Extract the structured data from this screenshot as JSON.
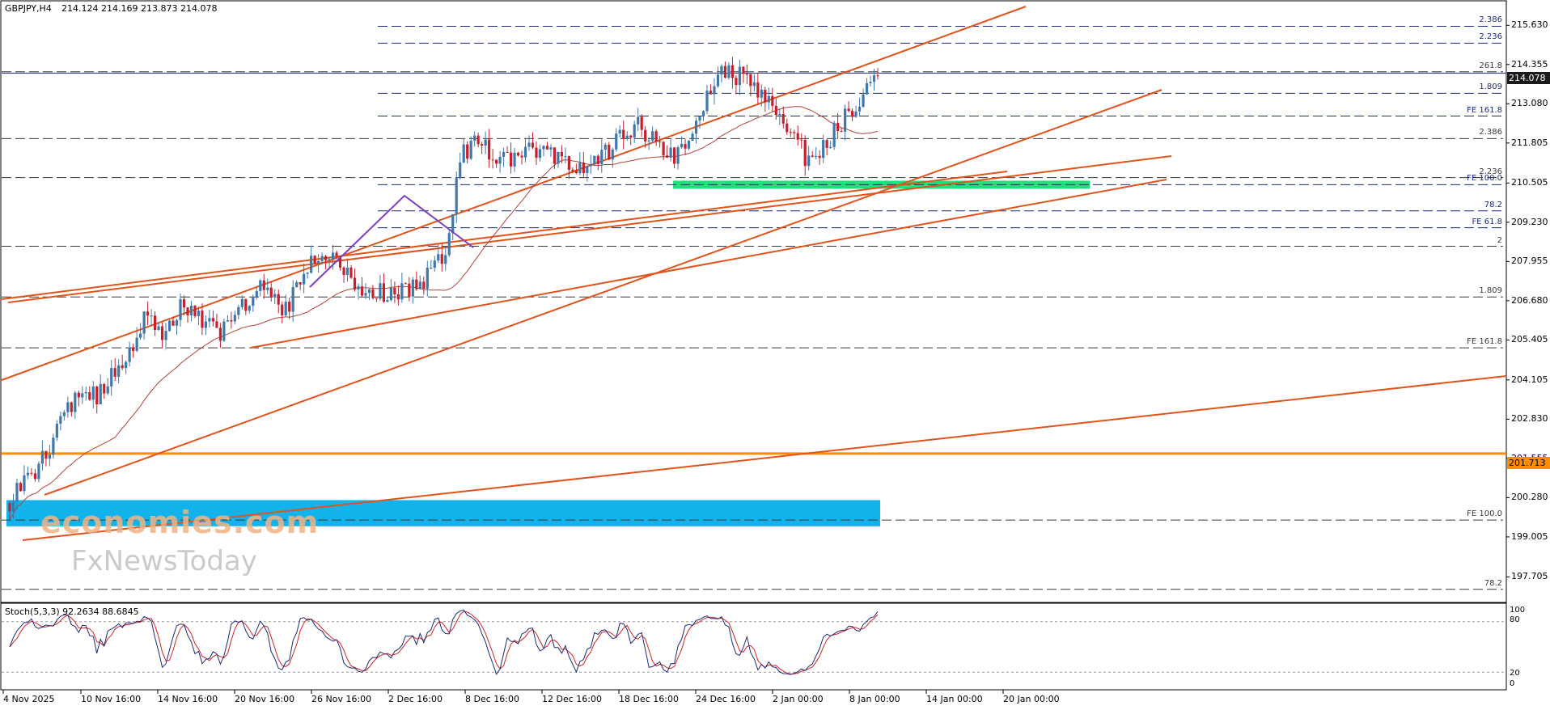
{
  "header": {
    "symbol": "GBPJPY,H4",
    "ohlc": "214.124 214.169 213.873 214.078"
  },
  "stoch_header": "Stoch(5,3,3) 92.2634 88.6845",
  "watermark": {
    "brand": "economies.com",
    "sub": "FxNewsToday"
  },
  "colors": {
    "bull": "#3f78ad",
    "bear": "#c8202a",
    "trend": "#e2531c",
    "orange_level": "#ff8c00",
    "fib": "#1c2a78",
    "ma": "#b0443a",
    "zone_green": "#1de27c",
    "zone_blue": "#12b3ea",
    "abc": "#7b3fc4",
    "stoch_main": "#1c2a78",
    "stoch_signal": "#d42222"
  },
  "price_badges": {
    "current": "214.078",
    "level": "201.713"
  },
  "chart_data": {
    "type": "candlestick",
    "ylim": [
      196.9,
      216.4
    ],
    "y_ticks": [
      "215.630",
      "214.355",
      "213.080",
      "211.805",
      "210.505",
      "209.230",
      "207.955",
      "206.680",
      "205.405",
      "204.105",
      "202.830",
      "201.555",
      "200.280",
      "199.005",
      "197.705"
    ],
    "x_ticks": [
      "4 Nov 2025",
      "10 Nov 16:00",
      "14 Nov 16:00",
      "20 Nov 16:00",
      "26 Nov 16:00",
      "2 Dec 16:00",
      "8 Dec 16:00",
      "12 Dec 16:00",
      "18 Dec 16:00",
      "24 Dec 16:00",
      "2 Jan 00:00",
      "8 Jan 00:00",
      "14 Jan 00:00",
      "20 Jan 00:00"
    ],
    "close_path": [
      [
        0,
        200.1
      ],
      [
        10,
        201.7
      ],
      [
        15,
        203.2
      ],
      [
        25,
        203.7
      ],
      [
        35,
        205.3
      ],
      [
        38,
        206.4
      ],
      [
        42,
        205.7
      ],
      [
        48,
        206.6
      ],
      [
        52,
        206.2
      ],
      [
        58,
        205.5
      ],
      [
        62,
        206.3
      ],
      [
        70,
        207.3
      ],
      [
        76,
        206.4
      ],
      [
        86,
        208.4
      ],
      [
        94,
        207.3
      ],
      [
        101,
        207.0
      ],
      [
        110,
        206.9
      ],
      [
        120,
        208.2
      ],
      [
        124,
        211.3
      ],
      [
        128,
        211.8
      ],
      [
        136,
        211.2
      ],
      [
        146,
        211.7
      ],
      [
        155,
        210.9
      ],
      [
        163,
        211.3
      ],
      [
        172,
        212.4
      ],
      [
        183,
        211.4
      ],
      [
        190,
        212.7
      ],
      [
        196,
        214.3
      ],
      [
        202,
        213.9
      ],
      [
        207,
        213.3
      ],
      [
        214,
        212.3
      ],
      [
        220,
        211.2
      ],
      [
        226,
        212.0
      ],
      [
        231,
        212.8
      ],
      [
        237,
        213.8
      ]
    ],
    "fib_levels": [
      {
        "label": "2.386",
        "value": 215.6
      },
      {
        "label": "2.236",
        "value": 215.05
      },
      {
        "label": "261.8",
        "value": 214.12
      },
      {
        "label": "1.809",
        "value": 213.42
      },
      {
        "label": "FE 161.8",
        "value": 212.68
      },
      {
        "label": "2.386",
        "value": 211.95
      },
      {
        "label": "2.236",
        "value": 210.68
      },
      {
        "label": "FE 100.0",
        "value": 210.45
      },
      {
        "label": "78.2",
        "value": 209.6
      },
      {
        "label": "FE 61.8",
        "value": 209.05
      },
      {
        "label": "2",
        "value": 208.45
      },
      {
        "label": "1.809",
        "value": 206.8
      },
      {
        "label": "FE 161.8",
        "value": 205.15
      },
      {
        "label": "FE 100.0",
        "value": 199.55
      },
      {
        "label": "78.2",
        "value": 197.3
      }
    ],
    "horizontal_levels": [
      {
        "name": "current",
        "value": 214.078
      },
      {
        "name": "support",
        "value": 201.713
      }
    ],
    "stochastic": {
      "name": "Stoch(5,3,3)",
      "main": 92.2634,
      "signal": 88.6845,
      "levels": [
        80,
        20
      ],
      "scale": [
        0,
        100
      ]
    }
  }
}
